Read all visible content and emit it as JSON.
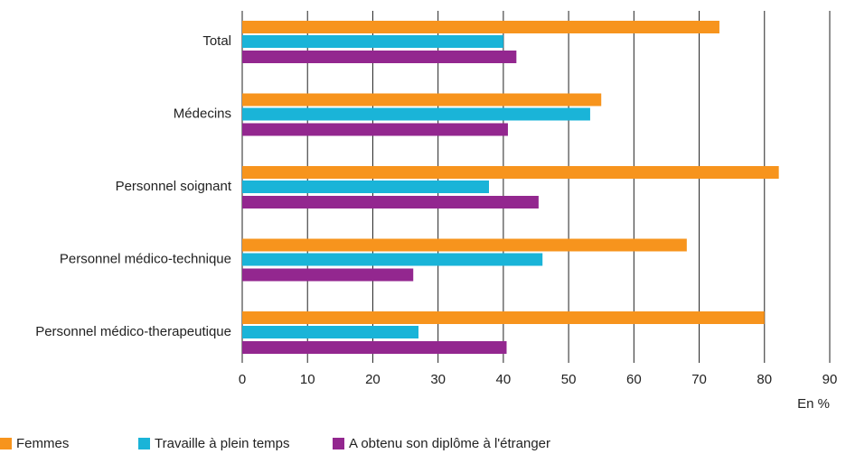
{
  "chart_data": {
    "type": "hbar",
    "categories": [
      "Total",
      "Médecins",
      "Personnel soignant",
      "Personnel médico-technique",
      "Personnel médico-therapeutique"
    ],
    "series": [
      {
        "name": "Femmes",
        "color": "#f7941d",
        "values": [
          73.1,
          55,
          82.2,
          68.1,
          80
        ]
      },
      {
        "name": "Travaille à plein temps",
        "color": "#1ab4d8",
        "values": [
          40,
          53.3,
          37.8,
          46,
          27
        ]
      },
      {
        "name": "A obtenu son diplôme à l'étranger",
        "color": "#93278f",
        "values": [
          42,
          40.7,
          45.4,
          26.2,
          40.5
        ]
      }
    ],
    "x_label": "En %",
    "xlim": [
      0,
      90
    ],
    "xticks": [
      0,
      10,
      20,
      30,
      40,
      50,
      60,
      70,
      80,
      90
    ],
    "grid": true,
    "legend": "bottom-left"
  }
}
